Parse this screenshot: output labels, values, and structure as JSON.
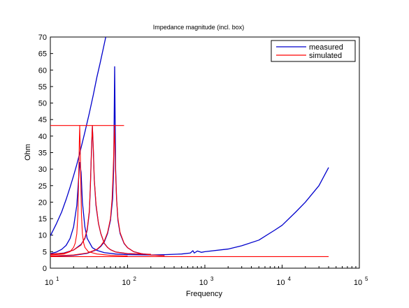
{
  "chart_data": {
    "type": "line",
    "title": "Impedance magnitude (incl. box)",
    "xlabel": "Frequency",
    "ylabel": "Ohm",
    "x_scale": "log",
    "xlim": [
      10,
      100000
    ],
    "ylim": [
      0,
      70
    ],
    "y_ticks": [
      0,
      5,
      10,
      15,
      20,
      25,
      30,
      35,
      40,
      45,
      50,
      55,
      60,
      65,
      70
    ],
    "x_ticks": [
      {
        "value": 10,
        "base": "10",
        "exp": "1"
      },
      {
        "value": 100,
        "base": "10",
        "exp": "2"
      },
      {
        "value": 1000,
        "base": "10",
        "exp": "3"
      },
      {
        "value": 10000,
        "base": "10",
        "exp": "4"
      },
      {
        "value": 100000,
        "base": "10",
        "exp": "5"
      }
    ],
    "grid": false,
    "legend_position": "top-right",
    "series": [
      {
        "name": "measured",
        "color": "#0000cc",
        "curves": [
          [
            [
              10,
              4.4
            ],
            [
              12,
              4.9
            ],
            [
              14,
              5.7
            ],
            [
              16,
              6.9
            ],
            [
              18,
              9
            ],
            [
              20,
              12.5
            ],
            [
              22,
              19
            ],
            [
              24,
              32
            ],
            [
              25,
              29
            ],
            [
              26,
              20
            ],
            [
              28,
              12.5
            ],
            [
              30,
              9
            ],
            [
              35,
              6.2
            ],
            [
              40,
              5.4
            ],
            [
              50,
              4.7
            ],
            [
              70,
              4.3
            ],
            [
              100,
              4.1
            ],
            [
              200,
              4
            ],
            [
              300,
              4.1
            ],
            [
              500,
              4.3
            ],
            [
              650,
              4.6
            ],
            [
              700,
              5.3
            ],
            [
              730,
              4.6
            ],
            [
              800,
              5.2
            ],
            [
              900,
              4.8
            ],
            [
              1000,
              5
            ],
            [
              2000,
              5.8
            ],
            [
              3000,
              6.8
            ],
            [
              5000,
              8.5
            ],
            [
              8000,
              11.5
            ],
            [
              10000,
              13
            ],
            [
              15000,
              17
            ],
            [
              20000,
              20
            ],
            [
              30000,
              25
            ],
            [
              40000,
              30.5
            ]
          ],
          [
            [
              10,
              4.2
            ],
            [
              15,
              4.6
            ],
            [
              20,
              5.5
            ],
            [
              25,
              7.2
            ],
            [
              28,
              9
            ],
            [
              30,
              11.5
            ],
            [
              32,
              17
            ],
            [
              33,
              25
            ],
            [
              34,
              35
            ],
            [
              35,
              43
            ],
            [
              36,
              36
            ],
            [
              37,
              27
            ],
            [
              39,
              19
            ],
            [
              42,
              13.5
            ],
            [
              45,
              10.5
            ],
            [
              50,
              7.5
            ],
            [
              55,
              6.3
            ],
            [
              60,
              5.6
            ],
            [
              70,
              4.9
            ],
            [
              100,
              4.4
            ],
            [
              200,
              4.2
            ]
          ],
          [
            [
              10,
              3.6
            ],
            [
              20,
              3.9
            ],
            [
              30,
              4.5
            ],
            [
              40,
              5.6
            ],
            [
              45,
              6.6
            ],
            [
              50,
              8
            ],
            [
              55,
              10.5
            ],
            [
              60,
              14.5
            ],
            [
              64,
              21
            ],
            [
              66,
              30
            ],
            [
              67,
              45
            ],
            [
              68,
              61
            ],
            [
              69,
              45
            ],
            [
              70,
              30
            ],
            [
              72,
              21
            ],
            [
              75,
              14.5
            ],
            [
              80,
              10.5
            ],
            [
              90,
              7.5
            ],
            [
              100,
              6.2
            ],
            [
              120,
              5
            ],
            [
              150,
              4.4
            ],
            [
              200,
              4
            ],
            [
              300,
              3.8
            ]
          ],
          [
            [
              10,
              9.8
            ],
            [
              12,
              13.5
            ],
            [
              14,
              17
            ],
            [
              16,
              20.8
            ],
            [
              18,
              24.5
            ],
            [
              20,
              28
            ],
            [
              22,
              31.4
            ],
            [
              24,
              34.8
            ],
            [
              28,
              41.2
            ],
            [
              32,
              47
            ],
            [
              36,
              52.5
            ],
            [
              40,
              57.8
            ],
            [
              44,
              62
            ],
            [
              50,
              68
            ],
            [
              55,
              72.5
            ]
          ]
        ]
      },
      {
        "name": "simulated",
        "color": "#ff0000",
        "curves": [
          [
            [
              10,
              43.2
            ],
            [
              90,
              43.2
            ]
          ],
          [
            [
              10,
              3.5
            ],
            [
              40000,
              3.5
            ]
          ],
          [
            [
              10,
              4
            ],
            [
              15,
              4.3
            ],
            [
              18,
              5
            ],
            [
              20,
              6.3
            ],
            [
              21,
              7.6
            ],
            [
              22,
              10.4
            ],
            [
              22.7,
              16
            ],
            [
              23.3,
              28
            ],
            [
              23.7,
              38
            ],
            [
              24,
              43.2
            ],
            [
              24.3,
              38
            ],
            [
              24.7,
              28
            ],
            [
              25.3,
              16
            ],
            [
              26,
              10.4
            ],
            [
              27,
              7.6
            ],
            [
              28,
              6.3
            ],
            [
              31,
              5
            ],
            [
              40,
              4.3
            ],
            [
              60,
              3.9
            ],
            [
              100,
              3.7
            ]
          ],
          [
            [
              10,
              4.3
            ],
            [
              15,
              4.5
            ],
            [
              20,
              5.5
            ],
            [
              25,
              7
            ],
            [
              28,
              9.2
            ],
            [
              30,
              11.8
            ],
            [
              32,
              17.5
            ],
            [
              33,
              25
            ],
            [
              34,
              35
            ],
            [
              35,
              43.2
            ],
            [
              36,
              36
            ],
            [
              37,
              27
            ],
            [
              39,
              19.5
            ],
            [
              42,
              13.5
            ],
            [
              45,
              10.5
            ],
            [
              50,
              7.5
            ],
            [
              55,
              6.3
            ],
            [
              60,
              5.6
            ],
            [
              70,
              4.9
            ],
            [
              100,
              4.4
            ],
            [
              200,
              4.2
            ]
          ],
          [
            [
              10,
              3.7
            ],
            [
              20,
              4
            ],
            [
              30,
              4.6
            ],
            [
              40,
              5.7
            ],
            [
              45,
              6.8
            ],
            [
              50,
              8.3
            ],
            [
              55,
              10.8
            ],
            [
              60,
              15
            ],
            [
              63,
              21
            ],
            [
              65,
              29
            ],
            [
              66.5,
              37
            ],
            [
              67.5,
              43.2
            ],
            [
              68.5,
              37
            ],
            [
              70,
              29
            ],
            [
              72,
              21
            ],
            [
              75,
              15
            ],
            [
              80,
              10.8
            ],
            [
              90,
              7.6
            ],
            [
              100,
              6.2
            ],
            [
              120,
              5
            ],
            [
              150,
              4.4
            ],
            [
              200,
              4
            ],
            [
              300,
              3.8
            ]
          ]
        ]
      }
    ]
  }
}
